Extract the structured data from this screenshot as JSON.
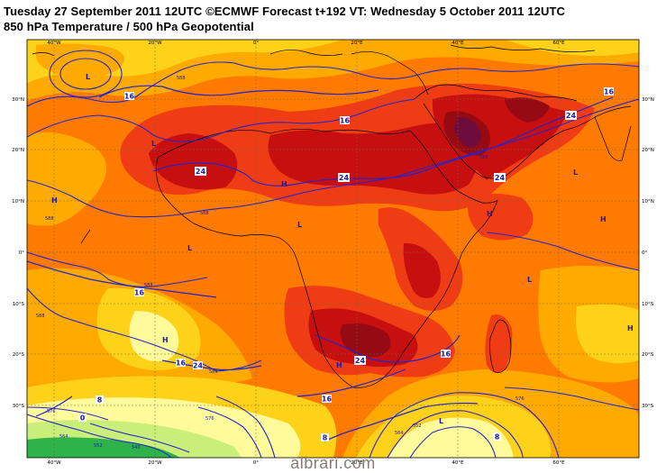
{
  "header": {
    "title_line1": "Tuesday 27 September 2011 12UTC ©ECMWF Forecast t+192 VT: Wednesday 5 October 2011 12UTC",
    "title_line2": "850 hPa Temperature / 500 hPa Geopotential"
  },
  "watermark": "albrari.com",
  "axes": {
    "lon_ticks": [
      "40°W",
      "20°W",
      "0°",
      "20°E",
      "40°E",
      "60°E"
    ],
    "lat_ticks_left": [
      "30°N",
      "20°N",
      "10°N",
      "0°",
      "10°S",
      "20°S",
      "30°S"
    ],
    "lat_ticks_right": [
      "30°N",
      "20°N",
      "10°N",
      "0°",
      "10°S",
      "20°S",
      "30°S"
    ]
  },
  "temperature_labels": [
    "16",
    "24",
    "16",
    "24",
    "24",
    "24",
    "24",
    "16",
    "16",
    "24",
    "16",
    "16",
    "8",
    "0",
    "8",
    "8",
    "16"
  ],
  "geopotential_labels": [
    "588",
    "588",
    "588",
    "588",
    "588",
    "588",
    "588",
    "576",
    "564",
    "552",
    "540",
    "576",
    "576",
    "564",
    "552"
  ],
  "pressure_centers": [
    "L",
    "H",
    "L",
    "H",
    "L",
    "H",
    "L",
    "H",
    "L",
    "H",
    "H",
    "L",
    "H",
    "L"
  ],
  "colors": {
    "t_lt0": "#2db34a",
    "t_0_4": "#c9ee7a",
    "t_4_8": "#fffa9a",
    "t_8_12": "#ffd21a",
    "t_12_16": "#ffaa00",
    "t_16_20": "#ff7a00",
    "t_20_24": "#f03c14",
    "t_24_28": "#c80f0f",
    "t_28_32": "#960a14",
    "t_gt32": "#6e0d3c",
    "contour": "#2525c8",
    "coastline": "#000000",
    "grid": "#6a6a3a"
  }
}
